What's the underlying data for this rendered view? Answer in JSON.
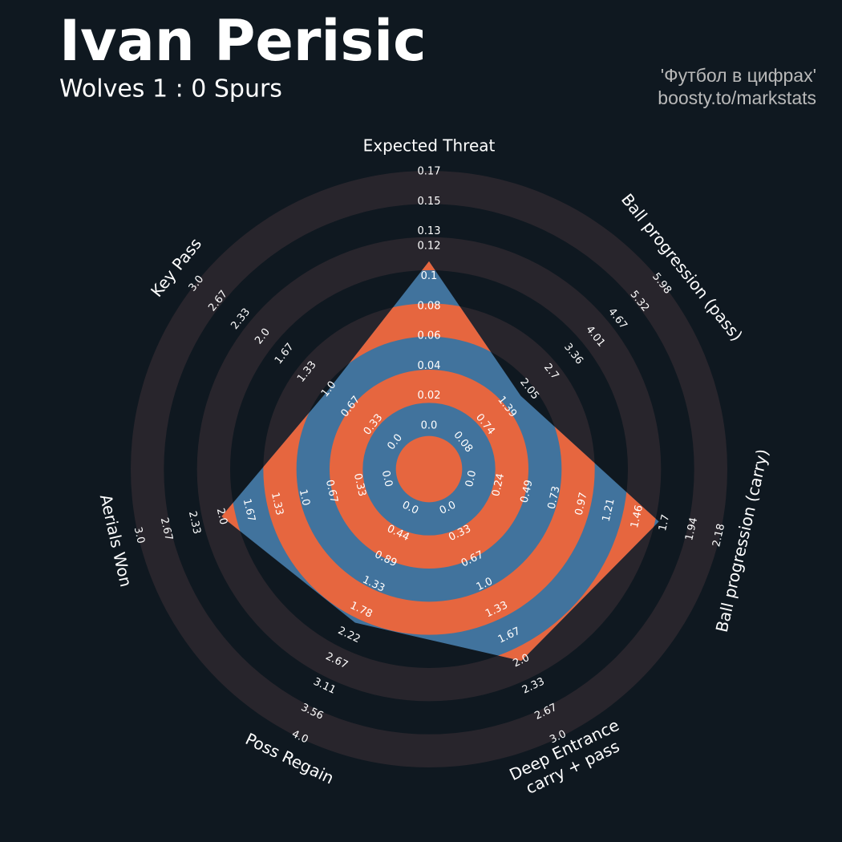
{
  "chart_data": {
    "type": "radar",
    "title": "Ivan Perisic",
    "subtitle": "Wolves 1 : 0 Spurs",
    "credits": [
      "'Футбол в цифрах'",
      "boosty.to/markstats"
    ],
    "fill_color": "#41739d",
    "alt_color": "#e6663f",
    "ring_color": "#28252c",
    "params": [
      {
        "label_lines": [
          "Expected Threat"
        ],
        "lim": [
          0,
          0.17
        ],
        "value": 0.11,
        "ticks": [
          {
            "value": 0,
            "label": "0.0"
          },
          0.02,
          0.04,
          0.06,
          0.08,
          0.1,
          0.12,
          0.13,
          0.15,
          0.17
        ]
      },
      {
        "label_lines": [
          "Ball progression (pass)"
        ],
        "lim": [
          0.08,
          5.98
        ],
        "value": 1.8,
        "ticks": [
          0.08,
          0.74,
          1.39,
          2.05,
          2.7,
          3.36,
          4.01,
          4.67,
          5.32,
          5.98
        ]
      },
      {
        "label_lines": [
          "Ball progression (carry)"
        ],
        "lim": [
          0,
          2.18
        ],
        "value": 1.65,
        "ticks": [
          {
            "value": 0,
            "label": "0.0"
          },
          0.24,
          0.49,
          0.73,
          0.97,
          1.21,
          1.46,
          1.7,
          1.94,
          2.18
        ]
      },
      {
        "label_lines": [
          "Deep Entrance",
          "carry + pass"
        ],
        "lim": [
          0,
          3
        ],
        "value": 2,
        "ticks": [
          {
            "value": 0,
            "label": "0.0"
          },
          0.33,
          0.67,
          {
            "value": 1,
            "label": "1.0"
          },
          1.33,
          1.67,
          {
            "value": 2,
            "label": "2.0"
          },
          2.33,
          2.67,
          {
            "value": 3,
            "label": "3.0"
          }
        ]
      },
      {
        "label_lines": [
          "Poss Regain"
        ],
        "lim": [
          0,
          4
        ],
        "value": 2,
        "ticks": [
          {
            "value": 0,
            "label": "0.0"
          },
          0.44,
          0.89,
          1.33,
          1.78,
          2.22,
          2.67,
          3.11,
          3.56,
          {
            "value": 4,
            "label": "4.0"
          }
        ]
      },
      {
        "label_lines": [
          "Aerials Won"
        ],
        "lim": [
          0,
          3
        ],
        "value": 2,
        "ticks": [
          {
            "value": 0,
            "label": "0.0"
          },
          0.33,
          0.67,
          {
            "value": 1,
            "label": "1.0"
          },
          1.33,
          1.67,
          {
            "value": 2,
            "label": "2.0"
          },
          2.33,
          2.67,
          {
            "value": 3,
            "label": "3.0"
          }
        ]
      },
      {
        "label_lines": [
          "Key Pass"
        ],
        "lim": [
          0,
          3
        ],
        "value": 1,
        "ticks": [
          {
            "value": 0,
            "label": "0.0"
          },
          0.33,
          0.67,
          {
            "value": 1,
            "label": "1.0"
          },
          1.33,
          1.67,
          {
            "value": 2,
            "label": "2.0"
          },
          2.33,
          2.67,
          {
            "value": 3,
            "label": "3.0"
          }
        ]
      }
    ]
  }
}
